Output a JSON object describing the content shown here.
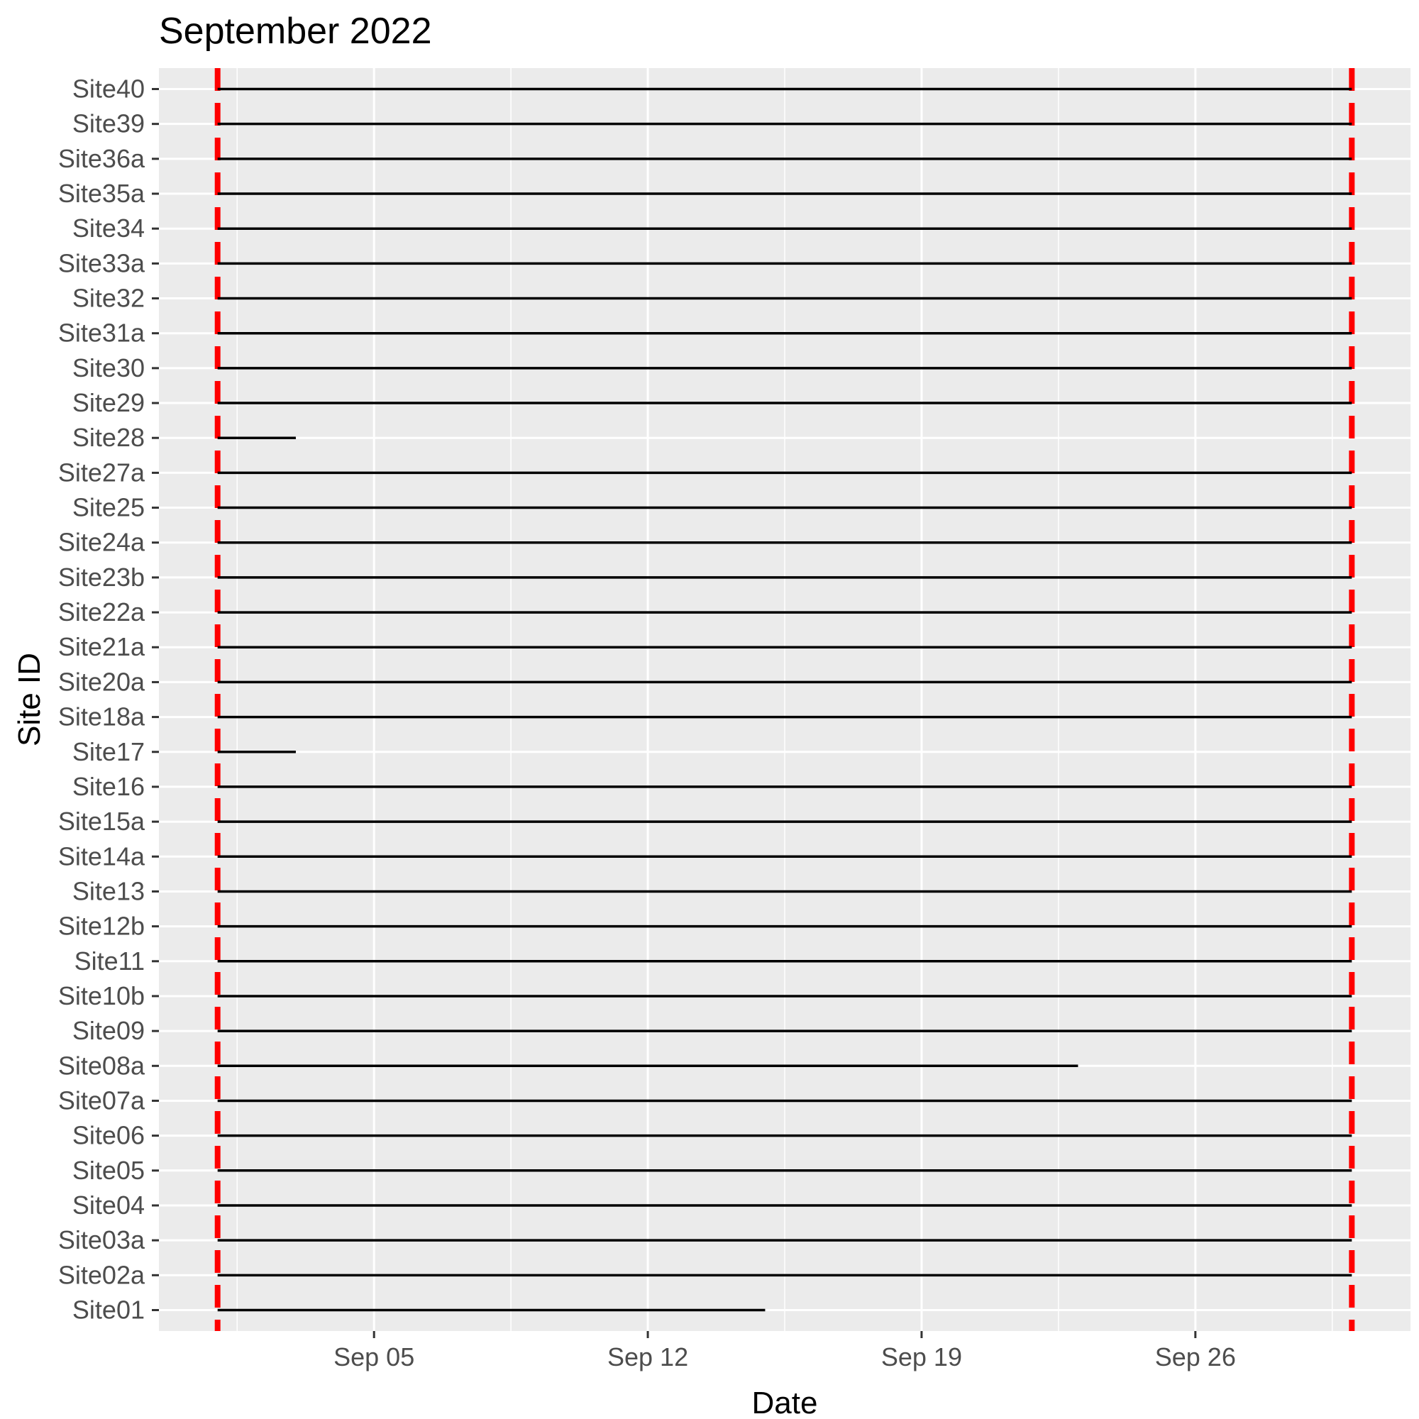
{
  "chart_data": {
    "type": "timeline",
    "title": "September 2022",
    "xlabel": "Date",
    "ylabel": "Site ID",
    "x_scale": "date",
    "xlim": [
      "2022-08-30T12:00",
      "2022-10-01T12:00"
    ],
    "x_ticks": [
      {
        "date": "2022-09-05",
        "label": "Sep 05"
      },
      {
        "date": "2022-09-12",
        "label": "Sep 12"
      },
      {
        "date": "2022-09-19",
        "label": "Sep 19"
      },
      {
        "date": "2022-09-26",
        "label": "Sep 26"
      }
    ],
    "reference_lines": {
      "color": "#ff0000",
      "style": "dashed",
      "dates": [
        "2022-09-01",
        "2022-09-30"
      ]
    },
    "series_color": "#000000",
    "grid": true,
    "panel_background": "#ebebeb",
    "sites": [
      {
        "id": "Site40",
        "start": "2022-09-01",
        "end": "2022-09-30"
      },
      {
        "id": "Site39",
        "start": "2022-09-01",
        "end": "2022-09-30"
      },
      {
        "id": "Site36a",
        "start": "2022-09-01",
        "end": "2022-09-30"
      },
      {
        "id": "Site35a",
        "start": "2022-09-01",
        "end": "2022-09-30"
      },
      {
        "id": "Site34",
        "start": "2022-09-01",
        "end": "2022-09-30"
      },
      {
        "id": "Site33a",
        "start": "2022-09-01",
        "end": "2022-09-30"
      },
      {
        "id": "Site32",
        "start": "2022-09-01",
        "end": "2022-09-30"
      },
      {
        "id": "Site31a",
        "start": "2022-09-01",
        "end": "2022-09-30"
      },
      {
        "id": "Site30",
        "start": "2022-09-01",
        "end": "2022-09-30"
      },
      {
        "id": "Site29",
        "start": "2022-09-01",
        "end": "2022-09-30"
      },
      {
        "id": "Site28",
        "start": "2022-09-01",
        "end": "2022-09-03"
      },
      {
        "id": "Site27a",
        "start": "2022-09-01",
        "end": "2022-09-30"
      },
      {
        "id": "Site25",
        "start": "2022-09-01",
        "end": "2022-09-30"
      },
      {
        "id": "Site24a",
        "start": "2022-09-01",
        "end": "2022-09-30"
      },
      {
        "id": "Site23b",
        "start": "2022-09-01",
        "end": "2022-09-30"
      },
      {
        "id": "Site22a",
        "start": "2022-09-01",
        "end": "2022-09-30"
      },
      {
        "id": "Site21a",
        "start": "2022-09-01",
        "end": "2022-09-30"
      },
      {
        "id": "Site20a",
        "start": "2022-09-01",
        "end": "2022-09-30"
      },
      {
        "id": "Site18a",
        "start": "2022-09-01",
        "end": "2022-09-30"
      },
      {
        "id": "Site17",
        "start": "2022-09-01",
        "end": "2022-09-03"
      },
      {
        "id": "Site16",
        "start": "2022-09-01",
        "end": "2022-09-30"
      },
      {
        "id": "Site15a",
        "start": "2022-09-01",
        "end": "2022-09-30"
      },
      {
        "id": "Site14a",
        "start": "2022-09-01",
        "end": "2022-09-30"
      },
      {
        "id": "Site13",
        "start": "2022-09-01",
        "end": "2022-09-30"
      },
      {
        "id": "Site12b",
        "start": "2022-09-01",
        "end": "2022-09-30"
      },
      {
        "id": "Site11",
        "start": "2022-09-01",
        "end": "2022-09-30"
      },
      {
        "id": "Site10b",
        "start": "2022-09-01",
        "end": "2022-09-30"
      },
      {
        "id": "Site09",
        "start": "2022-09-01",
        "end": "2022-09-30"
      },
      {
        "id": "Site08a",
        "start": "2022-09-01",
        "end": "2022-09-23"
      },
      {
        "id": "Site07a",
        "start": "2022-09-01",
        "end": "2022-09-30"
      },
      {
        "id": "Site06",
        "start": "2022-09-01",
        "end": "2022-09-30"
      },
      {
        "id": "Site05",
        "start": "2022-09-01",
        "end": "2022-09-30"
      },
      {
        "id": "Site04",
        "start": "2022-09-01",
        "end": "2022-09-30"
      },
      {
        "id": "Site03a",
        "start": "2022-09-01",
        "end": "2022-09-30"
      },
      {
        "id": "Site02a",
        "start": "2022-09-01",
        "end": "2022-09-30"
      },
      {
        "id": "Site01",
        "start": "2022-09-01",
        "end": "2022-09-15"
      }
    ]
  }
}
